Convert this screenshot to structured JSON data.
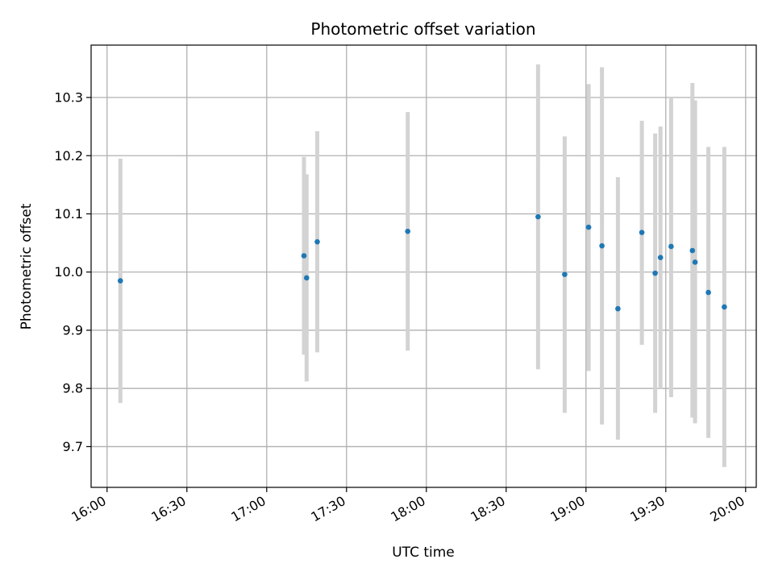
{
  "chart_data": {
    "type": "scatter",
    "title": "Photometric offset variation",
    "xlabel": "UTC time",
    "ylabel": "Photometric offset",
    "x_tick_labels": [
      "16:00",
      "16:30",
      "17:00",
      "17:30",
      "18:00",
      "18:30",
      "19:00",
      "19:30",
      "20:00"
    ],
    "y_tick_labels": [
      "9.7",
      "9.8",
      "9.9",
      "10.0",
      "10.1",
      "10.2",
      "10.3"
    ],
    "xlim": [
      "15:54",
      "20:04"
    ],
    "ylim": [
      9.63,
      10.39
    ],
    "grid": true,
    "colors": {
      "marker": "#1f77b4",
      "errorbar": "#d3d3d3",
      "grid": "#b0b0b0"
    },
    "points": [
      {
        "x": "16:05",
        "y": 9.985,
        "ylow": 9.775,
        "yhigh": 10.195
      },
      {
        "x": "17:14",
        "y": 10.028,
        "ylow": 9.858,
        "yhigh": 10.198
      },
      {
        "x": "17:15",
        "y": 9.99,
        "ylow": 9.812,
        "yhigh": 10.168
      },
      {
        "x": "17:19",
        "y": 10.052,
        "ylow": 9.862,
        "yhigh": 10.242
      },
      {
        "x": "17:53",
        "y": 10.07,
        "ylow": 9.865,
        "yhigh": 10.275
      },
      {
        "x": "18:42",
        "y": 10.095,
        "ylow": 9.833,
        "yhigh": 10.357
      },
      {
        "x": "18:52",
        "y": 9.996,
        "ylow": 9.758,
        "yhigh": 10.233
      },
      {
        "x": "19:01",
        "y": 10.077,
        "ylow": 9.83,
        "yhigh": 10.323
      },
      {
        "x": "19:06",
        "y": 10.045,
        "ylow": 9.738,
        "yhigh": 10.352
      },
      {
        "x": "19:12",
        "y": 9.937,
        "ylow": 9.712,
        "yhigh": 10.163
      },
      {
        "x": "19:21",
        "y": 10.068,
        "ylow": 9.875,
        "yhigh": 10.26
      },
      {
        "x": "19:26",
        "y": 9.998,
        "ylow": 9.758,
        "yhigh": 10.238
      },
      {
        "x": "19:28",
        "y": 10.025,
        "ylow": 9.8,
        "yhigh": 10.25
      },
      {
        "x": "19:32",
        "y": 10.044,
        "ylow": 9.785,
        "yhigh": 10.3
      },
      {
        "x": "19:40",
        "y": 10.037,
        "ylow": 9.75,
        "yhigh": 10.325
      },
      {
        "x": "19:41",
        "y": 10.017,
        "ylow": 9.74,
        "yhigh": 10.295
      },
      {
        "x": "19:46",
        "y": 9.965,
        "ylow": 9.715,
        "yhigh": 10.215
      },
      {
        "x": "19:52",
        "y": 9.94,
        "ylow": 9.665,
        "yhigh": 10.215
      }
    ]
  }
}
